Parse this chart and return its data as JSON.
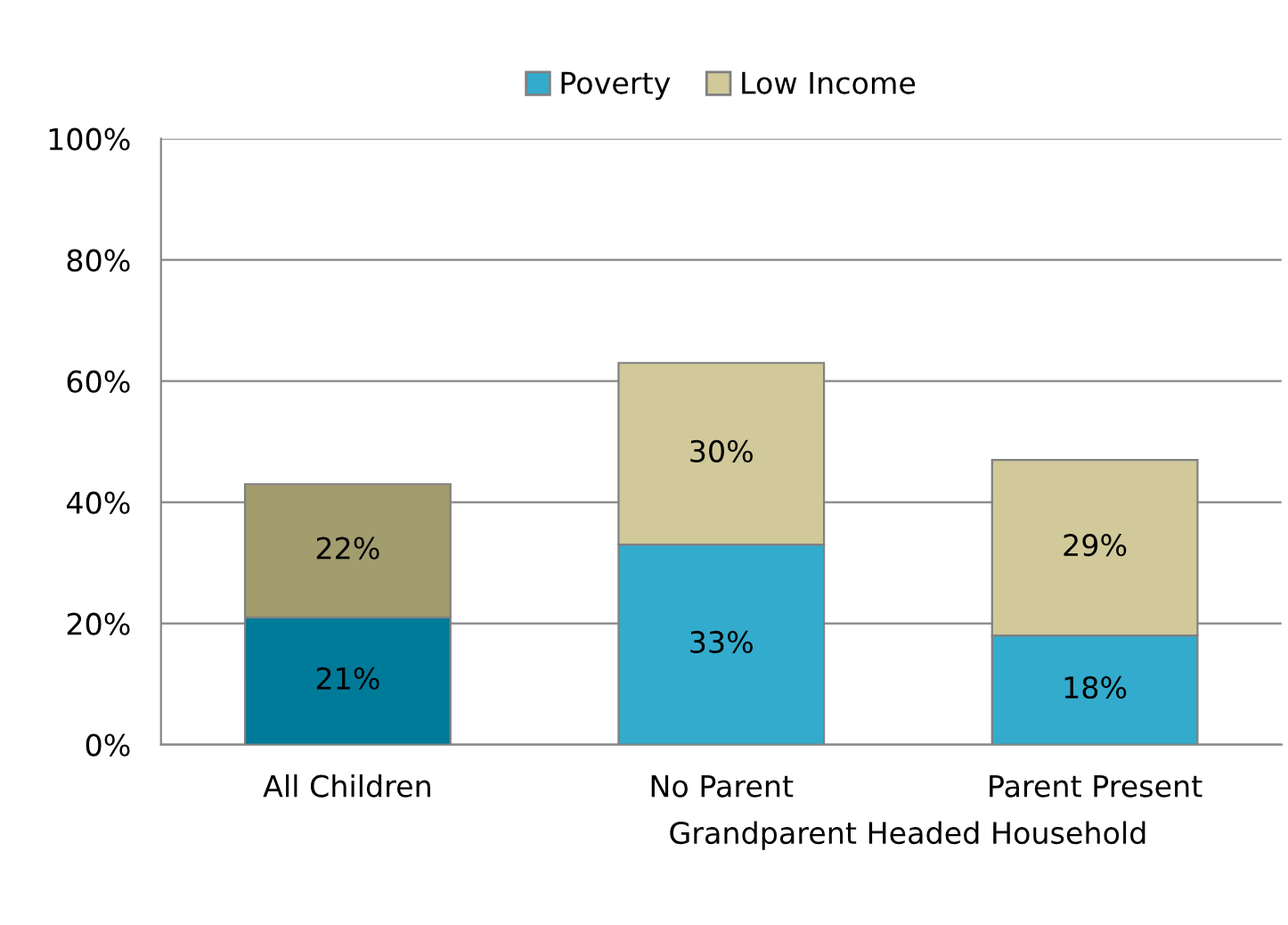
{
  "chart_data": {
    "type": "bar",
    "stacked": true,
    "categories": [
      "All Children",
      "No Parent",
      "Parent Present"
    ],
    "series": [
      {
        "name": "Poverty",
        "color": "#33abcc",
        "colors": [
          "#007a99",
          "#33abcc",
          "#33abcc"
        ],
        "values": [
          21,
          33,
          18
        ],
        "value_labels": [
          "21%",
          "33%",
          "18%"
        ]
      },
      {
        "name": "Low Income",
        "color": "#d1c99a",
        "colors": [
          "#a39d6e",
          "#d1c99a",
          "#d1c99a"
        ],
        "values": [
          22,
          30,
          29
        ],
        "value_labels": [
          "22%",
          "30%",
          "29%"
        ]
      }
    ],
    "ylim": [
      0,
      100
    ],
    "yticks": [
      {
        "value": 0,
        "label": "0%"
      },
      {
        "value": 20,
        "label": "20%"
      },
      {
        "value": 40,
        "label": "40%"
      },
      {
        "value": 60,
        "label": "60%"
      },
      {
        "value": 80,
        "label": "80%"
      },
      {
        "value": 100,
        "label": "100%"
      }
    ],
    "grid": "y",
    "legend": "top",
    "annotations": [
      "Grandparent Headed Household"
    ]
  }
}
